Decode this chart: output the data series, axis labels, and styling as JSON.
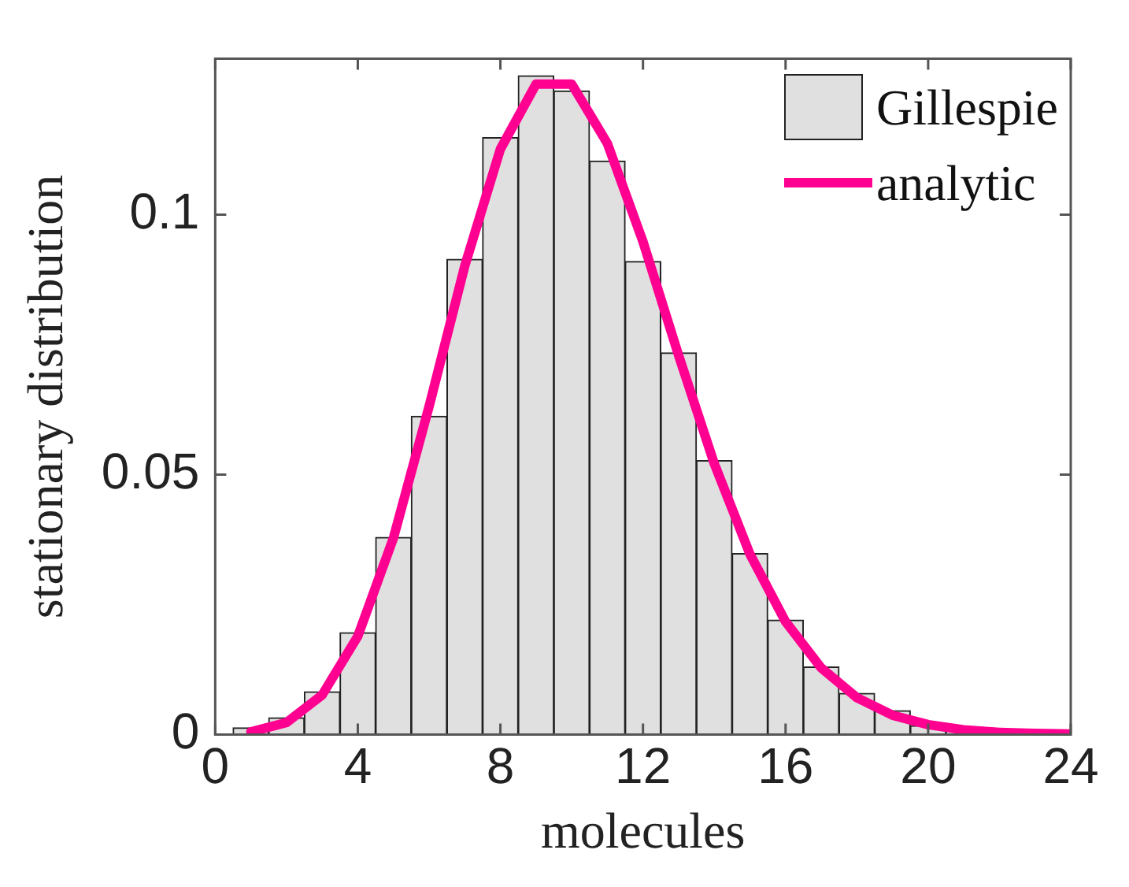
{
  "chart_data": {
    "type": "histogram",
    "xlabel": "molecules",
    "ylabel": "stationary distribution",
    "series": [
      {
        "name": "Gillespie",
        "type": "histogram",
        "color": "#e0e0e0",
        "bins": [
          0.5,
          1.5,
          2.5,
          3.5,
          4.5,
          5.5,
          6.5,
          7.5,
          8.5,
          9.5,
          10.5,
          11.5,
          12.5,
          13.5,
          14.5,
          15.5,
          16.5,
          17.5,
          18.5,
          19.5,
          20.5,
          21.5
        ],
        "values": [
          0.0013,
          0.0032,
          0.0082,
          0.0196,
          0.0379,
          0.0612,
          0.0914,
          0.1148,
          0.1267,
          0.1238,
          0.1103,
          0.091,
          0.0734,
          0.0527,
          0.0348,
          0.022,
          0.013,
          0.0079,
          0.0046,
          0.0017,
          0.0007
        ]
      },
      {
        "name": "analytic",
        "type": "line",
        "color": "#ff0090",
        "x": [
          1,
          2,
          3,
          4,
          5,
          6,
          7,
          8,
          9,
          10,
          11,
          12,
          13,
          14,
          15,
          16,
          17,
          18,
          19,
          20,
          21,
          22,
          23,
          24
        ],
        "values": [
          0.0005,
          0.0023,
          0.0076,
          0.0189,
          0.0378,
          0.0631,
          0.0901,
          0.1126,
          0.1251,
          0.1251,
          0.1137,
          0.0948,
          0.0729,
          0.0521,
          0.0347,
          0.0217,
          0.0128,
          0.0071,
          0.0037,
          0.0019,
          0.0009,
          0.0004,
          0.0002,
          0.0001
        ]
      }
    ],
    "xlim": [
      0,
      24
    ],
    "xticks": [
      0,
      4,
      8,
      12,
      16,
      20,
      24
    ],
    "ylim": [
      0,
      0.13
    ],
    "yticks": [
      0,
      0.05,
      0.1
    ],
    "legend": "top right",
    "marker": "none",
    "grid": false
  }
}
